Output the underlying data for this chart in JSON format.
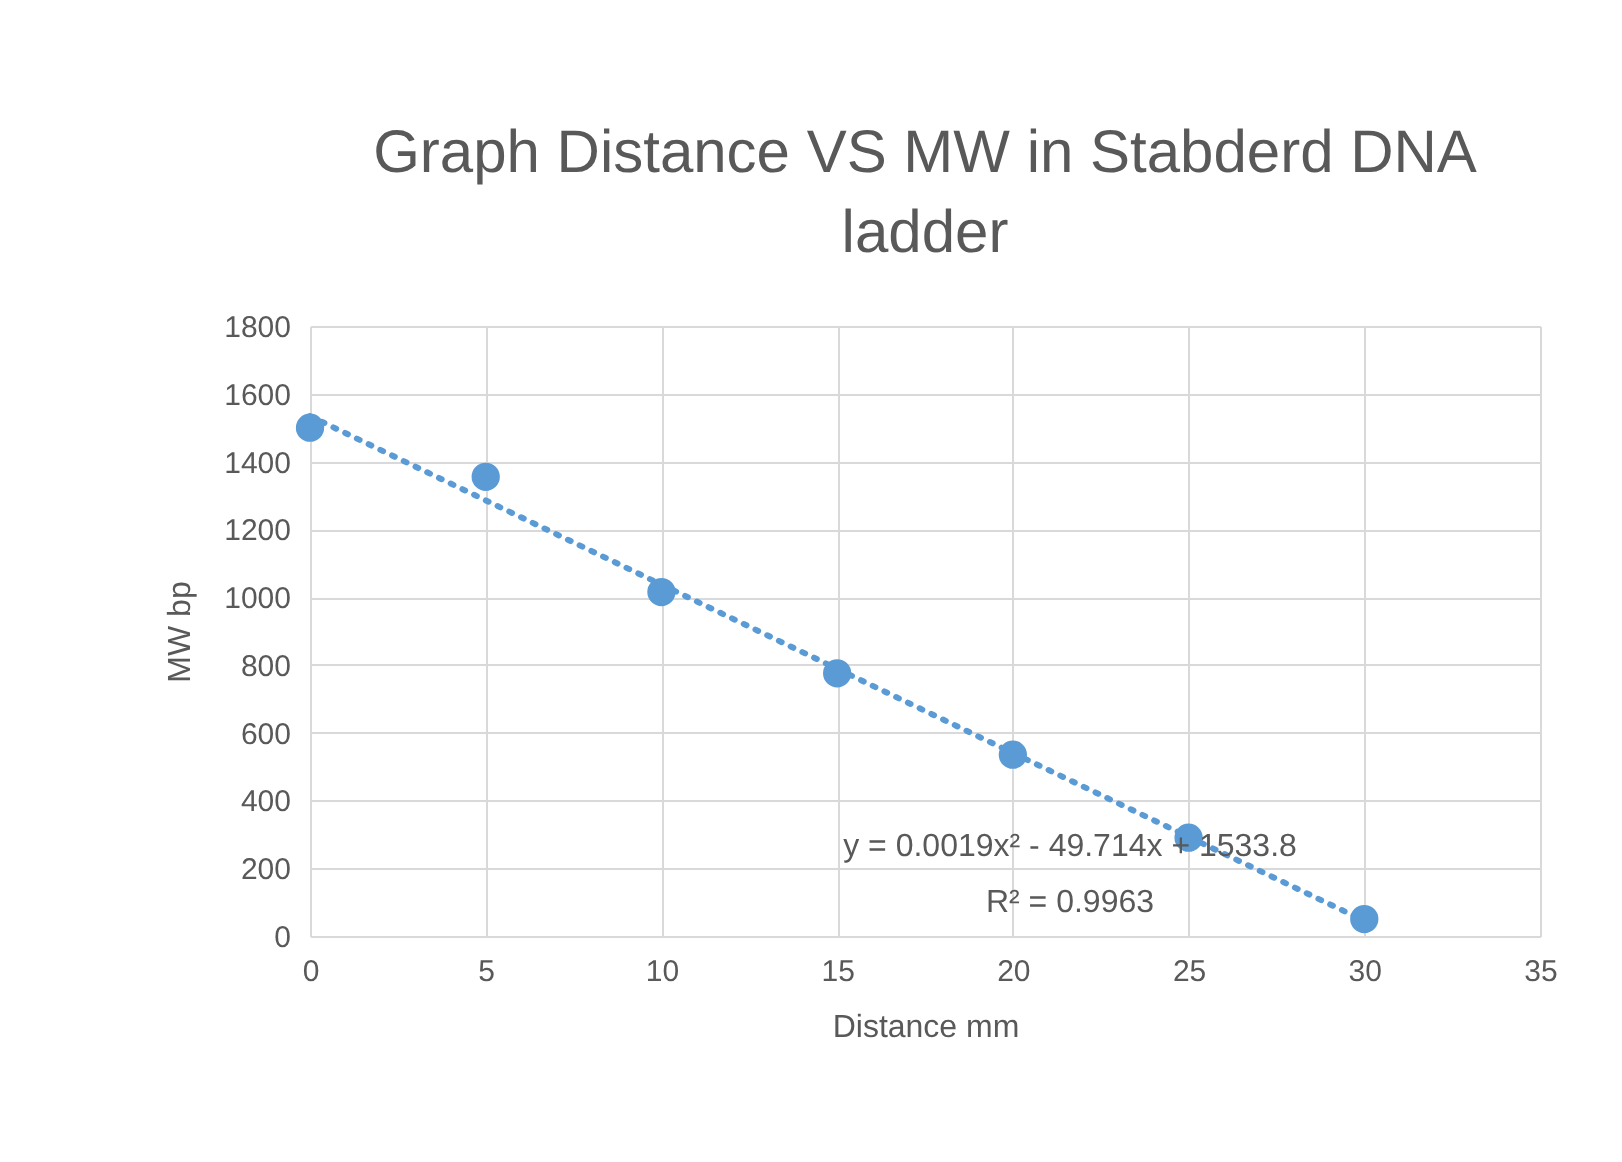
{
  "chart_data": {
    "type": "scatter",
    "title": "Graph  Distance VS MW in Stabderd  DNA ladder",
    "xlabel": "Distance mm",
    "ylabel": "MW bp",
    "x": [
      0,
      5,
      10,
      15,
      20,
      25,
      30
    ],
    "series": [
      {
        "color": "#5b9bd5",
        "values": [
          1500,
          1355,
          1015,
          775,
          535,
          290,
          50
        ]
      },
      {
        "type": "line",
        "color": "#5b9bd5",
        "line_style": "dotted",
        "marker": "none",
        "x": [
          0,
          10,
          20,
          30
        ],
        "values": [
          1534,
          1037,
          540,
          45
        ]
      }
    ],
    "xlim": [
      0,
      35
    ],
    "xticks": [
      0,
      5,
      10,
      15,
      20,
      25,
      30,
      35
    ],
    "ylim": [
      0,
      1800
    ],
    "yticks": [
      0,
      200,
      400,
      600,
      800,
      1000,
      1200,
      1400,
      1600,
      1800
    ],
    "grid": true,
    "marker": "circle",
    "annotations": [
      "y = 0.0019x² - 49.714x + 1533.8",
      "R² = 0.9963"
    ]
  }
}
